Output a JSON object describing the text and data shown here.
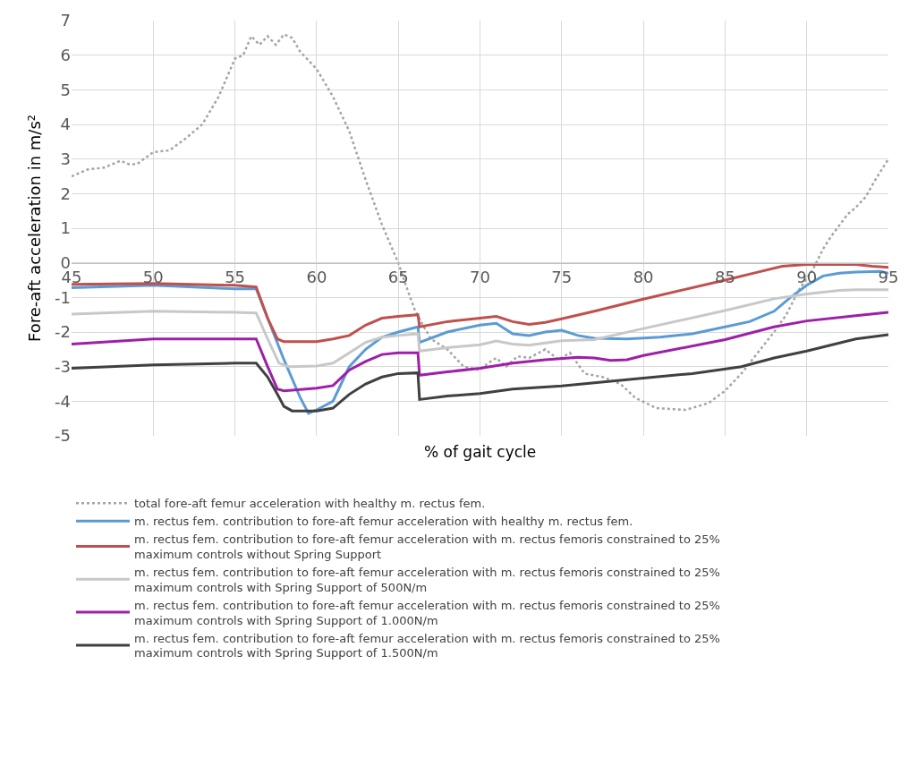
{
  "chart_data": {
    "type": "line",
    "xlabel": "% of gait cycle",
    "ylabel": "Fore-aft acceleration in m/s²",
    "xlim": [
      45,
      95
    ],
    "xticks": [
      45,
      50,
      55,
      60,
      65,
      70,
      75,
      80,
      85,
      90,
      95
    ],
    "ylim": [
      -5,
      7
    ],
    "yticks": [
      -5,
      -4,
      -3,
      -2,
      -1,
      0,
      1,
      2,
      3,
      4,
      5,
      6,
      7
    ],
    "grid": true,
    "legend": "bottom",
    "marker": "none",
    "series": [
      {
        "name": "total fore-aft femur acceleration with healthy m. rectus fem.",
        "color": "#a5a5a5",
        "line_style": "dotted",
        "x": [
          45,
          45.5,
          46,
          47,
          48,
          48.5,
          49,
          50,
          51,
          52,
          53,
          54,
          55,
          55.5,
          56,
          56.5,
          57,
          57.5,
          58,
          58.5,
          59,
          60,
          61,
          62,
          63,
          64,
          65,
          65.5,
          66,
          66.5,
          67,
          68,
          69,
          70,
          70.5,
          71,
          71.6,
          72.3,
          73,
          74,
          74.8,
          75.5,
          76.4,
          77.5,
          78.6,
          79.5,
          80.8,
          82.6,
          84,
          85,
          86,
          87,
          88,
          88.75,
          89.5,
          90.4,
          91,
          91.5,
          92.5,
          93,
          93.6,
          94.2,
          95
        ],
        "values": [
          2.5,
          2.6,
          2.7,
          2.75,
          2.95,
          2.85,
          2.85,
          3.2,
          3.25,
          3.6,
          4.0,
          4.8,
          5.9,
          6.0,
          6.55,
          6.3,
          6.55,
          6.3,
          6.6,
          6.5,
          6.1,
          5.6,
          4.8,
          3.8,
          2.4,
          1.1,
          0.0,
          -0.7,
          -1.35,
          -1.8,
          -2.2,
          -2.5,
          -3.0,
          -3.1,
          -2.9,
          -2.75,
          -3.0,
          -2.7,
          -2.75,
          -2.5,
          -2.8,
          -2.6,
          -3.2,
          -3.3,
          -3.5,
          -3.9,
          -4.2,
          -4.25,
          -4.05,
          -3.7,
          -3.2,
          -2.6,
          -2.0,
          -1.5,
          -0.8,
          -0.17,
          0.4,
          0.77,
          1.4,
          1.6,
          1.9,
          2.4,
          3.0
        ]
      },
      {
        "name": "m. rectus fem. contribution to fore-aft femur acceleration with healthy m. rectus fem.",
        "color": "#5b9bd5",
        "line_style": "solid",
        "x": [
          45,
          50,
          55,
          56.3,
          57,
          58,
          59,
          59.5,
          60,
          61,
          61.5,
          62,
          63,
          64,
          65,
          66.2,
          66.3,
          68,
          70,
          71,
          72,
          73,
          74,
          75,
          76,
          77,
          79,
          81,
          83,
          85,
          86.5,
          88,
          89,
          90,
          91,
          92,
          93,
          94.5,
          95
        ],
        "values": [
          -0.72,
          -0.65,
          -0.75,
          -0.75,
          -1.6,
          -2.8,
          -3.9,
          -4.35,
          -4.25,
          -4.0,
          -3.5,
          -3.0,
          -2.5,
          -2.15,
          -2.0,
          -1.85,
          -2.3,
          -2.0,
          -1.8,
          -1.75,
          -2.05,
          -2.1,
          -2.0,
          -1.95,
          -2.1,
          -2.18,
          -2.2,
          -2.15,
          -2.05,
          -1.85,
          -1.7,
          -1.4,
          -1.0,
          -0.65,
          -0.38,
          -0.3,
          -0.27,
          -0.25,
          -0.3
        ]
      },
      {
        "name": "m. rectus fem. contribution to fore-aft femur acceleration with m. rectus femoris constrained to 25% maximum controls without Spring Support",
        "color": "#c0504d",
        "line_style": "solid",
        "x": [
          45,
          50,
          55,
          56.3,
          57,
          57.6,
          58,
          60,
          61,
          62,
          63,
          64,
          65,
          66.2,
          66.3,
          68,
          70,
          71,
          72,
          73,
          74,
          75,
          77,
          80,
          85,
          87,
          88.5,
          90,
          93,
          94,
          95
        ],
        "values": [
          -0.62,
          -0.6,
          -0.65,
          -0.7,
          -1.6,
          -2.2,
          -2.28,
          -2.28,
          -2.2,
          -2.1,
          -1.8,
          -1.6,
          -1.55,
          -1.5,
          -1.85,
          -1.7,
          -1.6,
          -1.55,
          -1.7,
          -1.78,
          -1.72,
          -1.62,
          -1.4,
          -1.05,
          -0.5,
          -0.27,
          -0.1,
          -0.05,
          -0.05,
          -0.1,
          -0.13
        ]
      },
      {
        "name": "m. rectus fem. contribution to fore-aft femur acceleration with m. rectus femoris constrained to 25% maximum controls with Spring Support of 500N/m",
        "color": "#c8c8c8",
        "line_style": "solid",
        "x": [
          45,
          50,
          55,
          56.3,
          57,
          57.7,
          58.3,
          60,
          61,
          62,
          63,
          64,
          65,
          66.2,
          66.3,
          68,
          70,
          71,
          72,
          73,
          75,
          77,
          80,
          85,
          88,
          90,
          92,
          93,
          95
        ],
        "values": [
          -1.48,
          -1.4,
          -1.43,
          -1.45,
          -2.2,
          -2.9,
          -3.0,
          -2.98,
          -2.9,
          -2.6,
          -2.3,
          -2.15,
          -2.1,
          -2.05,
          -2.55,
          -2.45,
          -2.37,
          -2.26,
          -2.35,
          -2.38,
          -2.25,
          -2.22,
          -1.9,
          -1.38,
          -1.04,
          -0.9,
          -0.8,
          -0.78,
          -0.78
        ]
      },
      {
        "name": "m. rectus fem. contribution to fore-aft femur acceleration with m. rectus femoris constrained to 25% maximum controls with Spring Support of 1.000N/m",
        "color": "#9e1fa8",
        "line_style": "solid",
        "x": [
          45,
          50,
          55,
          56.3,
          57,
          57.6,
          58,
          60,
          61,
          62,
          63,
          64,
          65,
          66.2,
          66.3,
          68,
          70,
          72,
          74,
          76,
          77,
          78,
          79,
          80,
          85,
          88,
          90,
          93,
          95
        ],
        "values": [
          -2.35,
          -2.2,
          -2.2,
          -2.2,
          -3.0,
          -3.65,
          -3.7,
          -3.62,
          -3.55,
          -3.1,
          -2.85,
          -2.65,
          -2.6,
          -2.6,
          -3.25,
          -3.15,
          -3.05,
          -2.9,
          -2.8,
          -2.73,
          -2.75,
          -2.82,
          -2.8,
          -2.68,
          -2.22,
          -1.85,
          -1.68,
          -1.53,
          -1.43
        ]
      },
      {
        "name": "m. rectus fem. contribution to fore-aft femur acceleration with m. rectus femoris constrained to 25% maximum controls with Spring Support of 1.500N/m",
        "color": "#404040",
        "line_style": "solid",
        "x": [
          45,
          50,
          55,
          56.3,
          57,
          57.6,
          58,
          58.5,
          60,
          61,
          62,
          63,
          64,
          65,
          66.2,
          66.3,
          68,
          70,
          72,
          75,
          80,
          83,
          86,
          88,
          90,
          93,
          95
        ],
        "values": [
          -3.05,
          -2.95,
          -2.9,
          -2.9,
          -3.3,
          -3.8,
          -4.15,
          -4.28,
          -4.28,
          -4.2,
          -3.8,
          -3.5,
          -3.3,
          -3.2,
          -3.18,
          -3.95,
          -3.85,
          -3.78,
          -3.65,
          -3.56,
          -3.33,
          -3.2,
          -3.0,
          -2.75,
          -2.55,
          -2.2,
          -2.08
        ]
      }
    ]
  }
}
